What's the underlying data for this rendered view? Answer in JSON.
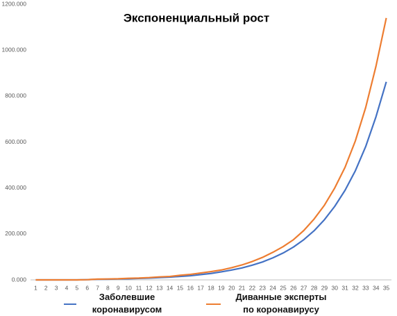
{
  "chart_data": {
    "type": "line",
    "title": "Экспоненциальный рост",
    "categories": [
      "1",
      "2",
      "3",
      "4",
      "5",
      "6",
      "7",
      "8",
      "9",
      "10",
      "11",
      "12",
      "13",
      "14",
      "15",
      "16",
      "17",
      "18",
      "19",
      "20",
      "21",
      "22",
      "23",
      "24",
      "25",
      "26",
      "27",
      "28",
      "29",
      "30",
      "31",
      "32",
      "33",
      "34",
      "35"
    ],
    "series": [
      {
        "name": "Заболевшие\nкоронавирусом",
        "color": "#4472c4",
        "values": [
          0,
          0,
          0,
          0,
          0,
          1000,
          2500,
          3000,
          4000,
          5000,
          6500,
          8000,
          10000,
          12000,
          15000,
          18000,
          23000,
          28000,
          35000,
          43000,
          52000,
          64000,
          78000,
          96000,
          117000,
          143000,
          175000,
          214000,
          262000,
          320000,
          390000,
          475000,
          580000,
          710000,
          862000
        ]
      },
      {
        "name": "Диванные эксперты\nпо коронавирусу",
        "color": "#ed7d31",
        "values": [
          0,
          0,
          0,
          0,
          0,
          1000,
          3500,
          4000,
          5000,
          7000,
          8000,
          10000,
          13000,
          15000,
          20000,
          24000,
          30000,
          36000,
          43000,
          53000,
          65000,
          80000,
          98000,
          120000,
          145000,
          175000,
          215000,
          265000,
          325000,
          400000,
          490000,
          605000,
          750000,
          930000,
          1140000
        ]
      }
    ],
    "ylim": [
      0,
      1200000
    ],
    "yticks": [
      {
        "value": 0,
        "label": "0.000"
      },
      {
        "value": 200000,
        "label": "200.000"
      },
      {
        "value": 400000,
        "label": "400.000"
      },
      {
        "value": 600000,
        "label": "600.000"
      },
      {
        "value": 800000,
        "label": "800.000"
      },
      {
        "value": 1000000,
        "label": "1000.000"
      },
      {
        "value": 1200000,
        "label": "1200.000"
      }
    ],
    "grid": false
  }
}
